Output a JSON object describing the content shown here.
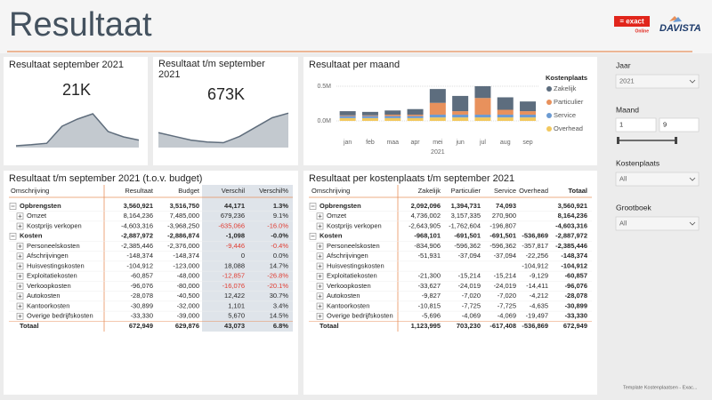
{
  "header": {
    "title": "Resultaat",
    "logo_exact": "= exact",
    "logo_exact_sub": "Online",
    "logo_davista": "DAVISTA"
  },
  "kpis": [
    {
      "title": "Resultaat september 2021",
      "value": "21K",
      "chart_data": {
        "type": "area",
        "values": [
          5,
          8,
          12,
          60,
          80,
          95,
          45,
          30,
          21
        ],
        "ylim": [
          0,
          110
        ],
        "color": "#5f6d7c"
      }
    },
    {
      "title": "Resultaat t/m september 2021",
      "value": "673K",
      "chart_data": {
        "type": "area",
        "values": [
          150,
          50,
          -50,
          -100,
          -120,
          50,
          300,
          550,
          673
        ],
        "ylim": [
          -250,
          800
        ],
        "color": "#5f6d7c"
      }
    }
  ],
  "chart_data": {
    "type": "bar",
    "stacked": true,
    "title": "Resultaat per maand",
    "categories": [
      "jan",
      "feb",
      "maa",
      "apr",
      "mei",
      "jun",
      "jul",
      "aug",
      "sep"
    ],
    "year": "2021",
    "series": [
      {
        "name": "Zakelijk",
        "color": "#5d6d7e",
        "values": [
          0.06,
          0.05,
          0.06,
          0.08,
          0.2,
          0.22,
          0.17,
          0.18,
          0.14
        ]
      },
      {
        "name": "Particulier",
        "color": "#e8915c",
        "values": [
          0.01,
          0.01,
          0.02,
          0.02,
          0.17,
          0.05,
          0.24,
          0.07,
          0.05
        ]
      },
      {
        "name": "Service",
        "color": "#6c9bd2",
        "values": [
          0.03,
          0.03,
          0.03,
          0.03,
          0.04,
          0.04,
          0.04,
          0.04,
          0.04
        ]
      },
      {
        "name": "Overhead",
        "color": "#f2c85e",
        "values": [
          0.04,
          0.04,
          0.04,
          0.04,
          0.05,
          0.05,
          0.05,
          0.05,
          0.05
        ]
      }
    ],
    "ylim": [
      0,
      0.6
    ],
    "yticks": [
      {
        "value": 0,
        "label": "0.0M"
      },
      {
        "value": 0.5,
        "label": "0.5M"
      }
    ],
    "legend_title": "Kostenplaats",
    "legend": "right"
  },
  "tables": [
    {
      "title": "Resultaat t/m september 2021 (t.o.v. budget)",
      "columns": [
        "Omschrijving",
        "Resultaat",
        "Budget",
        "Verschil",
        "Verschil%"
      ],
      "groups": [
        {
          "label": "Opbrengsten",
          "cells": [
            "3,560,921",
            "3,516,750",
            "44,171",
            "1.3%"
          ],
          "children": [
            {
              "label": "Omzet",
              "cells": [
                "8,164,236",
                "7,485,000",
                "679,236",
                "9.1%"
              ]
            },
            {
              "label": "Kostprijs verkopen",
              "cells": [
                "-4,603,316",
                "-3,968,250",
                "-635,066",
                "-16.0%"
              ]
            }
          ]
        },
        {
          "label": "Kosten",
          "cells": [
            "-2,887,972",
            "-2,886,874",
            "-1,098",
            "-0.0%"
          ],
          "children": [
            {
              "label": "Personeelskosten",
              "cells": [
                "-2,385,446",
                "-2,376,000",
                "-9,446",
                "-0.4%"
              ]
            },
            {
              "label": "Afschrijvingen",
              "cells": [
                "-148,374",
                "-148,374",
                "0",
                "0.0%"
              ]
            },
            {
              "label": "Huisvestingskosten",
              "cells": [
                "-104,912",
                "-123,000",
                "18,088",
                "14.7%"
              ]
            },
            {
              "label": "Exploitatiekosten",
              "cells": [
                "-60,857",
                "-48,000",
                "-12,857",
                "-26.8%"
              ]
            },
            {
              "label": "Verkoopkosten",
              "cells": [
                "-96,076",
                "-80,000",
                "-16,076",
                "-20.1%"
              ]
            },
            {
              "label": "Autokosten",
              "cells": [
                "-28,078",
                "-40,500",
                "12,422",
                "30.7%"
              ]
            },
            {
              "label": "Kantoorkosten",
              "cells": [
                "-30,899",
                "-32,000",
                "1,101",
                "3.4%"
              ]
            },
            {
              "label": "Overige bedrijfskosten",
              "cells": [
                "-33,330",
                "-39,000",
                "5,670",
                "14.5%"
              ]
            }
          ]
        }
      ],
      "total": {
        "label": "Totaal",
        "cells": [
          "672,949",
          "629,876",
          "43,073",
          "6.8%"
        ]
      }
    },
    {
      "title": "Resultaat per kostenplaats t/m september 2021",
      "columns": [
        "Omschrijving",
        "Zakelijk",
        "Particulier",
        "Service",
        "Overhead",
        "Totaal"
      ],
      "groups": [
        {
          "label": "Opbrengsten",
          "cells": [
            "2,092,096",
            "1,394,731",
            "74,093",
            null,
            "3,560,921"
          ],
          "children": [
            {
              "label": "Omzet",
              "cells": [
                "4,736,002",
                "3,157,335",
                "270,900",
                null,
                "8,164,236"
              ]
            },
            {
              "label": "Kostprijs verkopen",
              "cells": [
                "-2,643,905",
                "-1,762,604",
                "-196,807",
                null,
                "-4,603,316"
              ]
            }
          ]
        },
        {
          "label": "Kosten",
          "cells": [
            "-968,101",
            "-691,501",
            "-691,501",
            "-536,869",
            "-2,887,972"
          ],
          "children": [
            {
              "label": "Personeelskosten",
              "cells": [
                "-834,906",
                "-596,362",
                "-596,362",
                "-357,817",
                "-2,385,446"
              ]
            },
            {
              "label": "Afschrijvingen",
              "cells": [
                "-51,931",
                "-37,094",
                "-37,094",
                "-22,256",
                "-148,374"
              ]
            },
            {
              "label": "Huisvestingskosten",
              "cells": [
                null,
                null,
                null,
                "-104,912",
                "-104,912"
              ]
            },
            {
              "label": "Exploitatiekosten",
              "cells": [
                "-21,300",
                "-15,214",
                "-15,214",
                "-9,129",
                "-60,857"
              ]
            },
            {
              "label": "Verkoopkosten",
              "cells": [
                "-33,627",
                "-24,019",
                "-24,019",
                "-14,411",
                "-96,076"
              ]
            },
            {
              "label": "Autokosten",
              "cells": [
                "-9,827",
                "-7,020",
                "-7,020",
                "-4,212",
                "-28,078"
              ]
            },
            {
              "label": "Kantoorkosten",
              "cells": [
                "-10,815",
                "-7,725",
                "-7,725",
                "-4,635",
                "-30,899"
              ]
            },
            {
              "label": "Overige bedrijfskosten",
              "cells": [
                "-5,696",
                "-4,069",
                "-4,069",
                "-19,497",
                "-33,330"
              ]
            }
          ]
        }
      ],
      "total": {
        "label": "Totaal",
        "cells": [
          "1,123,995",
          "703,230",
          "-617,408",
          "-536,869",
          "672,949"
        ]
      }
    }
  ],
  "slicers": [
    {
      "label": "Jaar",
      "value": "2021"
    },
    {
      "label": "Maand",
      "from": "1",
      "to": "9"
    },
    {
      "label": "Kostenplaats",
      "value": "All"
    },
    {
      "label": "Grootboek",
      "value": "All"
    }
  ],
  "footer": "Template Kostenplaatsen - Exac..."
}
